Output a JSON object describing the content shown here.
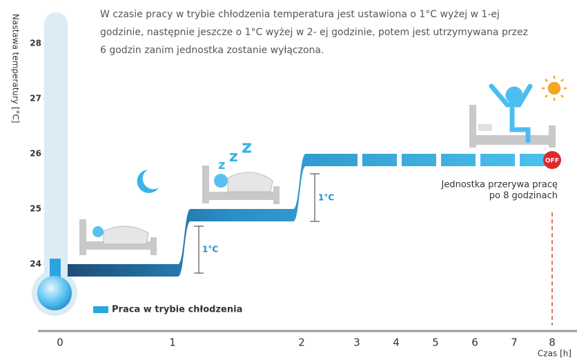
{
  "chart_data": {
    "type": "step",
    "description": [
      "W czasie pracy w trybie chłodzenia temperatura jest ustawiona o 1°C wyżej w 1-ej",
      "godzinie,  następnie jeszcze o 1°C wyżej w 2- ej godzinie, potem jest utrzymywana przez",
      "6 godzin zanim jednostka zostanie wyłączona."
    ],
    "y_label": "Nastawa temperatury [°C]",
    "x_label": "Czas [h]",
    "categories": [
      0,
      1,
      2,
      3,
      4,
      5,
      6,
      7,
      8
    ],
    "series": [
      {
        "name": "Praca w trybie chłodzenia",
        "color": "#29a8e0",
        "values": [
          24,
          25,
          26,
          26,
          26,
          26,
          26,
          26,
          26
        ]
      }
    ],
    "ylim": [
      24,
      28
    ],
    "yticks": [
      24,
      25,
      26,
      27,
      28
    ],
    "annotations": [
      "1°C",
      "1°C",
      "OFF"
    ],
    "end_note": [
      "Jednostka przerywa pracę",
      "po 8 godzinach"
    ]
  }
}
